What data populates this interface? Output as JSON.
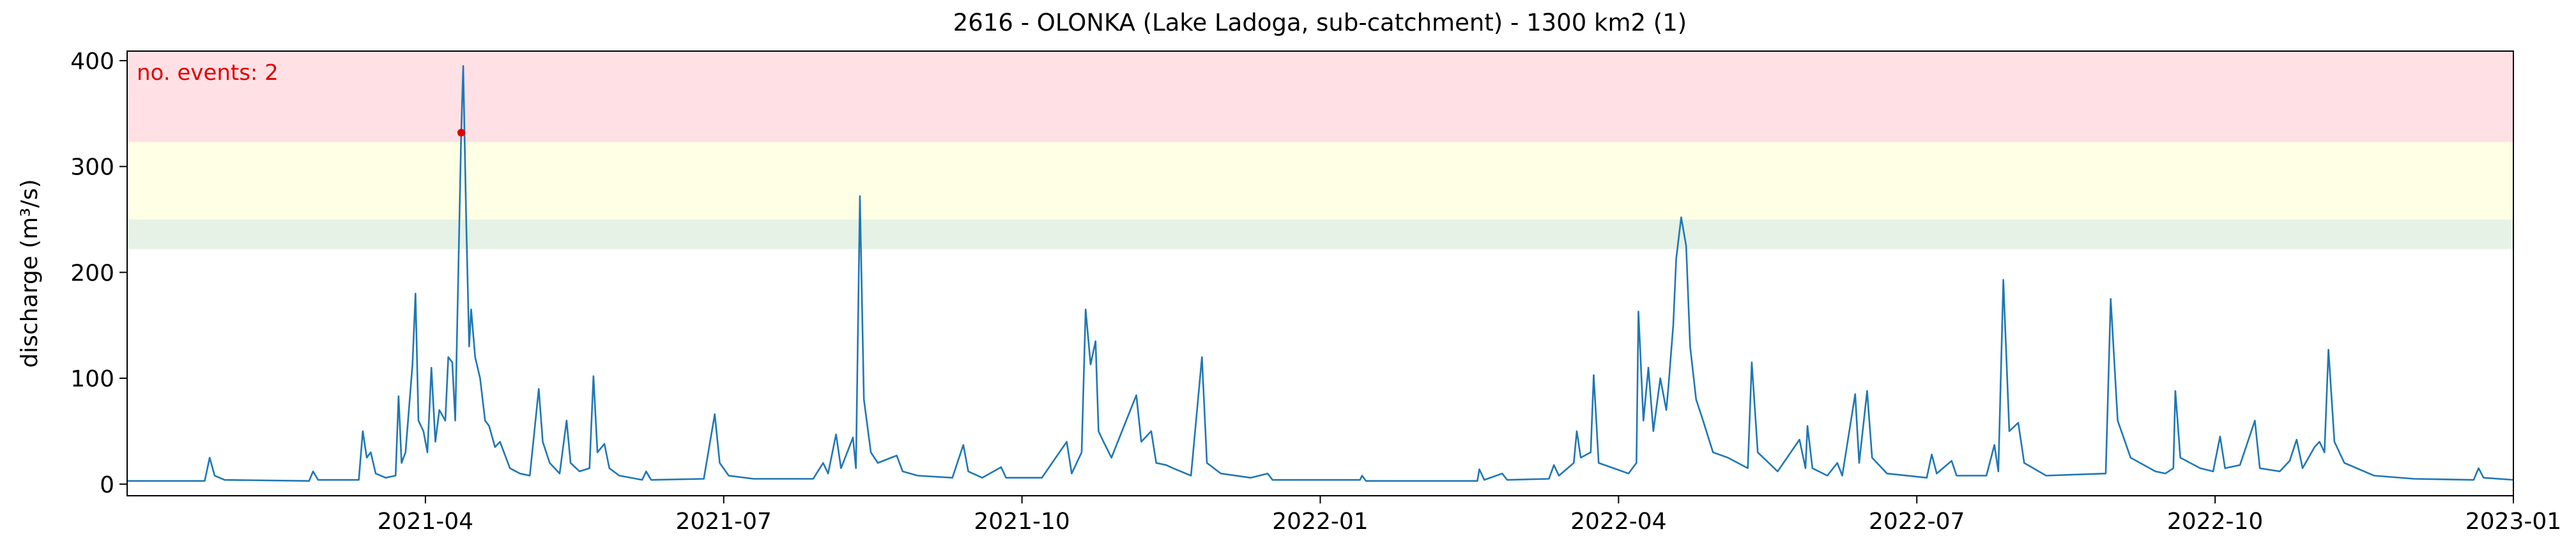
{
  "chart_data": {
    "type": "line",
    "title": "2616 - OLONKA (Lake Ladoga, sub-catchment) - 1300 km2 (1)",
    "y_label": "discharge (m³/s)",
    "annotation": "no. events: 2",
    "annotation_color": "#e00000",
    "xlim": [
      0,
      24
    ],
    "xticks": [
      {
        "value": 3,
        "label": "2021-04"
      },
      {
        "value": 6,
        "label": "2021-07"
      },
      {
        "value": 9,
        "label": "2021-10"
      },
      {
        "value": 12,
        "label": "2022-01"
      },
      {
        "value": 15,
        "label": "2022-04"
      },
      {
        "value": 18,
        "label": "2022-07"
      },
      {
        "value": 21,
        "label": "2022-10"
      },
      {
        "value": 24,
        "label": "2023-01"
      }
    ],
    "ylim": [
      -11,
      409
    ],
    "yticks": [
      0,
      100,
      200,
      300,
      400
    ],
    "bands": [
      {
        "from": 222,
        "to": 250,
        "color": "#e5f2e5"
      },
      {
        "from": 250,
        "to": 323,
        "color": "#ffffe5"
      },
      {
        "from": 323,
        "to": 409,
        "color": "#ffe1e5"
      }
    ],
    "x": [
      0,
      0.78,
      0.83,
      0.88,
      0.98,
      1.83,
      1.87,
      1.92,
      2.33,
      2.37,
      2.41,
      2.45,
      2.5,
      2.6,
      2.7,
      2.73,
      2.76,
      2.8,
      2.87,
      2.9,
      2.93,
      2.98,
      3.02,
      3.06,
      3.1,
      3.14,
      3.2,
      3.23,
      3.27,
      3.3,
      3.36,
      3.38,
      3.41,
      3.44,
      3.46,
      3.5,
      3.55,
      3.6,
      3.64,
      3.7,
      3.75,
      3.85,
      3.95,
      4.05,
      4.14,
      4.18,
      4.25,
      4.35,
      4.42,
      4.46,
      4.55,
      4.65,
      4.69,
      4.73,
      4.8,
      4.85,
      4.95,
      5.18,
      5.22,
      5.27,
      5.8,
      5.91,
      5.96,
      6.05,
      6.3,
      6.9,
      7.0,
      7.05,
      7.13,
      7.18,
      7.3,
      7.33,
      7.37,
      7.41,
      7.48,
      7.55,
      7.74,
      7.8,
      7.95,
      8.3,
      8.41,
      8.46,
      8.6,
      8.79,
      8.84,
      9.2,
      9.45,
      9.5,
      9.6,
      9.64,
      9.69,
      9.74,
      9.77,
      9.82,
      9.9,
      10.15,
      10.2,
      10.3,
      10.35,
      10.45,
      10.52,
      10.7,
      10.81,
      10.86,
      11.0,
      11.3,
      11.47,
      11.52,
      12.4,
      12.42,
      12.46,
      13.58,
      13.6,
      13.65,
      13.83,
      13.88,
      14.3,
      14.35,
      14.4,
      14.55,
      14.58,
      14.62,
      14.72,
      14.75,
      14.8,
      14.95,
      15.1,
      15.18,
      15.2,
      15.25,
      15.3,
      15.35,
      15.42,
      15.48,
      15.5,
      15.55,
      15.58,
      15.63,
      15.68,
      15.72,
      15.78,
      15.85,
      15.95,
      16.1,
      16.2,
      16.3,
      16.34,
      16.4,
      16.6,
      16.82,
      16.88,
      16.9,
      16.95,
      17.1,
      17.2,
      17.25,
      17.38,
      17.42,
      17.5,
      17.55,
      17.7,
      18.1,
      18.15,
      18.2,
      18.35,
      18.4,
      18.7,
      18.78,
      18.82,
      18.87,
      18.93,
      19.02,
      19.08,
      19.3,
      19.9,
      19.95,
      20.02,
      20.15,
      20.4,
      20.5,
      20.58,
      20.6,
      20.65,
      20.85,
      20.98,
      21.05,
      21.1,
      21.25,
      21.4,
      21.45,
      21.65,
      21.75,
      21.82,
      21.88,
      22.0,
      22.05,
      22.1,
      22.14,
      22.2,
      22.3,
      22.6,
      23.0,
      23.6,
      23.65,
      23.7,
      24
    ],
    "series": [
      {
        "color": "#1f77b4",
        "values": [
          3,
          3,
          25,
          8,
          4,
          3,
          12,
          4,
          4,
          50,
          25,
          30,
          10,
          6,
          8,
          83,
          20,
          30,
          113,
          180,
          60,
          50,
          30,
          110,
          40,
          70,
          60,
          120,
          115,
          60,
          332,
          395,
          250,
          130,
          165,
          120,
          100,
          60,
          55,
          35,
          40,
          15,
          10,
          8,
          90,
          40,
          20,
          10,
          60,
          20,
          12,
          15,
          102,
          30,
          38,
          15,
          8,
          4,
          12,
          4,
          5,
          66,
          20,
          8,
          5,
          5,
          20,
          10,
          47,
          15,
          44,
          15,
          272,
          80,
          30,
          20,
          27,
          12,
          8,
          6,
          37,
          12,
          6,
          16,
          6,
          6,
          40,
          10,
          30,
          165,
          113,
          135,
          50,
          40,
          25,
          84,
          40,
          50,
          20,
          18,
          15,
          8,
          120,
          20,
          10,
          6,
          10,
          4,
          4,
          8,
          3,
          3,
          14,
          4,
          10,
          4,
          5,
          18,
          8,
          20,
          50,
          25,
          30,
          103,
          20,
          15,
          10,
          20,
          163,
          60,
          110,
          50,
          100,
          70,
          90,
          150,
          213,
          252,
          225,
          130,
          80,
          60,
          30,
          25,
          20,
          15,
          115,
          30,
          12,
          42,
          15,
          55,
          15,
          8,
          20,
          8,
          85,
          20,
          88,
          25,
          10,
          6,
          28,
          10,
          22,
          8,
          8,
          37,
          12,
          193,
          50,
          58,
          20,
          8,
          10,
          175,
          60,
          25,
          12,
          10,
          15,
          88,
          25,
          15,
          12,
          45,
          15,
          18,
          60,
          15,
          12,
          22,
          42,
          15,
          35,
          40,
          30,
          127,
          40,
          20,
          8,
          5,
          4,
          15,
          6,
          4
        ]
      }
    ],
    "events": {
      "color": "#e00000",
      "x": [
        3.36
      ],
      "values": [
        332
      ]
    }
  }
}
